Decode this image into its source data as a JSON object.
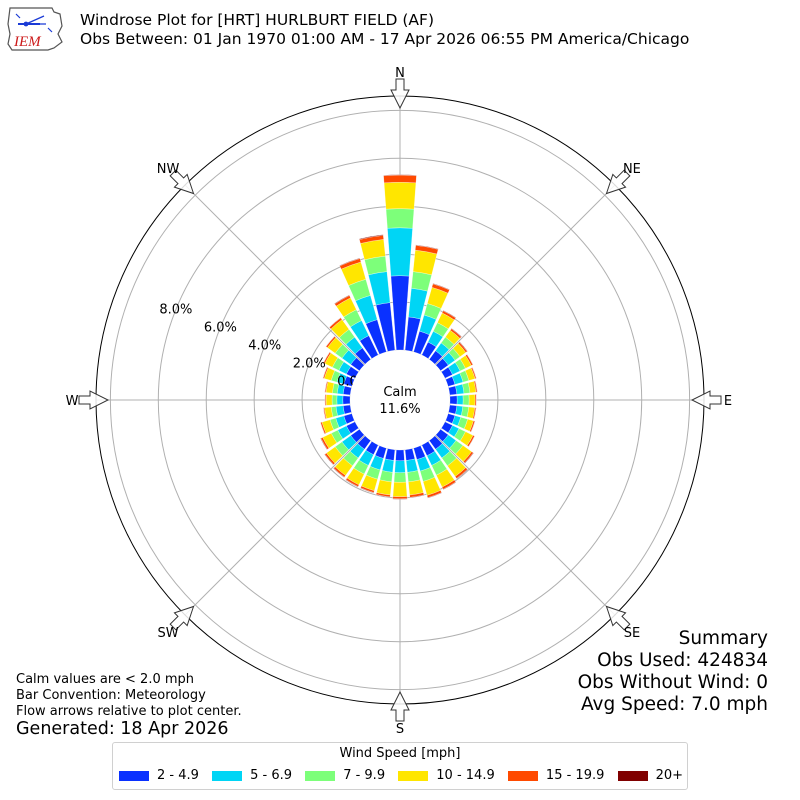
{
  "header": {
    "title_line1": "Windrose Plot for [HRT] HURLBURT FIELD (AF)",
    "title_line2": "Obs Between: 01 Jan 1970 01:00 AM - 17 Apr 2026 06:55 PM America/Chicago",
    "logo_text": "IEM"
  },
  "notes": {
    "line1": "Calm values are < 2.0 mph",
    "line2": "Bar Convention: Meteorology",
    "line3": "Flow arrows relative to plot center.",
    "generated": "Generated: 18 Apr 2026"
  },
  "summary": {
    "title": "Summary",
    "obs_used": "Obs Used: 424834",
    "obs_without_wind": "Obs Without Wind: 0",
    "avg_speed": "Avg Speed: 7.0 mph"
  },
  "legend": {
    "title": "Wind Speed [mph]",
    "items": [
      {
        "label": "2 - 4.9",
        "color": "#0a31ff"
      },
      {
        "label": "5 - 6.9",
        "color": "#00d5f5"
      },
      {
        "label": "7 - 9.9",
        "color": "#7dff7a"
      },
      {
        "label": "10 - 14.9",
        "color": "#ffe600"
      },
      {
        "label": "15 - 19.9",
        "color": "#ff4a00"
      },
      {
        "label": "20+",
        "color": "#800000"
      }
    ]
  },
  "chart_data": {
    "type": "windrose",
    "calm": {
      "label": "Calm",
      "value": "11.6%"
    },
    "direction_labels": [
      "N",
      "NE",
      "E",
      "SE",
      "S",
      "SW",
      "W",
      "NW"
    ],
    "direction_label_angles_deg": [
      0,
      45,
      90,
      135,
      180,
      225,
      270,
      315
    ],
    "radial_tick_labels": [
      "0.0%",
      "2.0%",
      "4.0%",
      "6.0%",
      "8.0%"
    ],
    "radial_ticks_pct": [
      0,
      2,
      4,
      6,
      8,
      10
    ],
    "radial_max_pct": 10.6,
    "bins": [
      "2 - 4.9",
      "5 - 6.9",
      "7 - 9.9",
      "10 - 14.9",
      "15 - 19.9",
      "20+"
    ],
    "sectors": [
      {
        "dir_deg": 0,
        "cum_pct": [
          3.1,
          5.1,
          5.9,
          7.0,
          7.3,
          7.32
        ]
      },
      {
        "dir_deg": 10,
        "cum_pct": [
          1.4,
          2.6,
          3.3,
          4.2,
          4.4,
          4.42
        ]
      },
      {
        "dir_deg": 20,
        "cum_pct": [
          0.9,
          1.6,
          2.1,
          2.8,
          2.95,
          2.97
        ]
      },
      {
        "dir_deg": 30,
        "cum_pct": [
          0.6,
          1.1,
          1.5,
          1.95,
          2.05,
          2.07
        ]
      },
      {
        "dir_deg": 40,
        "cum_pct": [
          0.45,
          0.85,
          1.15,
          1.5,
          1.58,
          1.6
        ]
      },
      {
        "dir_deg": 50,
        "cum_pct": [
          0.4,
          0.75,
          1.0,
          1.3,
          1.37,
          1.39
        ]
      },
      {
        "dir_deg": 60,
        "cum_pct": [
          0.35,
          0.7,
          0.95,
          1.22,
          1.29,
          1.3
        ]
      },
      {
        "dir_deg": 70,
        "cum_pct": [
          0.3,
          0.65,
          0.9,
          1.17,
          1.22,
          1.23
        ]
      },
      {
        "dir_deg": 80,
        "cum_pct": [
          0.3,
          0.6,
          0.85,
          1.1,
          1.15,
          1.16
        ]
      },
      {
        "dir_deg": 90,
        "cum_pct": [
          0.3,
          0.55,
          0.8,
          1.05,
          1.1,
          1.11
        ]
      },
      {
        "dir_deg": 100,
        "cum_pct": [
          0.3,
          0.55,
          0.8,
          1.05,
          1.1,
          1.11
        ]
      },
      {
        "dir_deg": 110,
        "cum_pct": [
          0.3,
          0.55,
          0.85,
          1.1,
          1.16,
          1.17
        ]
      },
      {
        "dir_deg": 120,
        "cum_pct": [
          0.35,
          0.65,
          0.95,
          1.3,
          1.37,
          1.38
        ]
      },
      {
        "dir_deg": 130,
        "cum_pct": [
          0.4,
          0.8,
          1.15,
          1.6,
          1.68,
          1.7
        ]
      },
      {
        "dir_deg": 140,
        "cum_pct": [
          0.45,
          0.9,
          1.3,
          1.85,
          1.95,
          1.97
        ]
      },
      {
        "dir_deg": 150,
        "cum_pct": [
          0.5,
          0.95,
          1.4,
          1.95,
          2.05,
          2.07
        ]
      },
      {
        "dir_deg": 160,
        "cum_pct": [
          0.5,
          1.0,
          1.45,
          2.05,
          2.15,
          2.17
        ]
      },
      {
        "dir_deg": 170,
        "cum_pct": [
          0.45,
          0.95,
          1.35,
          1.9,
          2.0,
          2.02
        ]
      },
      {
        "dir_deg": 180,
        "cum_pct": [
          0.45,
          0.95,
          1.35,
          1.95,
          2.04,
          2.06
        ]
      },
      {
        "dir_deg": 190,
        "cum_pct": [
          0.45,
          0.95,
          1.35,
          1.9,
          1.98,
          2.0
        ]
      },
      {
        "dir_deg": 200,
        "cum_pct": [
          0.45,
          0.95,
          1.35,
          1.85,
          1.93,
          1.95
        ]
      },
      {
        "dir_deg": 210,
        "cum_pct": [
          0.45,
          0.95,
          1.35,
          1.85,
          1.93,
          1.95
        ]
      },
      {
        "dir_deg": 220,
        "cum_pct": [
          0.45,
          0.9,
          1.3,
          1.8,
          1.88,
          1.9
        ]
      },
      {
        "dir_deg": 230,
        "cum_pct": [
          0.45,
          0.9,
          1.25,
          1.7,
          1.78,
          1.8
        ]
      },
      {
        "dir_deg": 240,
        "cum_pct": [
          0.4,
          0.8,
          1.1,
          1.5,
          1.58,
          1.6
        ]
      },
      {
        "dir_deg": 250,
        "cum_pct": [
          0.35,
          0.7,
          0.95,
          1.3,
          1.36,
          1.37
        ]
      },
      {
        "dir_deg": 260,
        "cum_pct": [
          0.3,
          0.6,
          0.8,
          1.08,
          1.12,
          1.13
        ]
      },
      {
        "dir_deg": 270,
        "cum_pct": [
          0.3,
          0.55,
          0.75,
          1.0,
          1.04,
          1.05
        ]
      },
      {
        "dir_deg": 280,
        "cum_pct": [
          0.3,
          0.55,
          0.75,
          1.02,
          1.06,
          1.07
        ]
      },
      {
        "dir_deg": 290,
        "cum_pct": [
          0.35,
          0.65,
          0.9,
          1.2,
          1.25,
          1.26
        ]
      },
      {
        "dir_deg": 300,
        "cum_pct": [
          0.4,
          0.75,
          1.05,
          1.4,
          1.46,
          1.47
        ]
      },
      {
        "dir_deg": 310,
        "cum_pct": [
          0.45,
          0.9,
          1.25,
          1.65,
          1.72,
          1.73
        ]
      },
      {
        "dir_deg": 320,
        "cum_pct": [
          0.6,
          1.15,
          1.55,
          2.05,
          2.14,
          2.15
        ]
      },
      {
        "dir_deg": 330,
        "cum_pct": [
          0.9,
          1.6,
          2.1,
          2.65,
          2.76,
          2.78
        ]
      },
      {
        "dir_deg": 340,
        "cum_pct": [
          1.4,
          2.45,
          3.15,
          3.9,
          4.05,
          4.07
        ]
      },
      {
        "dir_deg": 350,
        "cum_pct": [
          2.0,
          3.3,
          3.95,
          4.65,
          4.82,
          4.85
        ]
      }
    ],
    "grid": true
  }
}
